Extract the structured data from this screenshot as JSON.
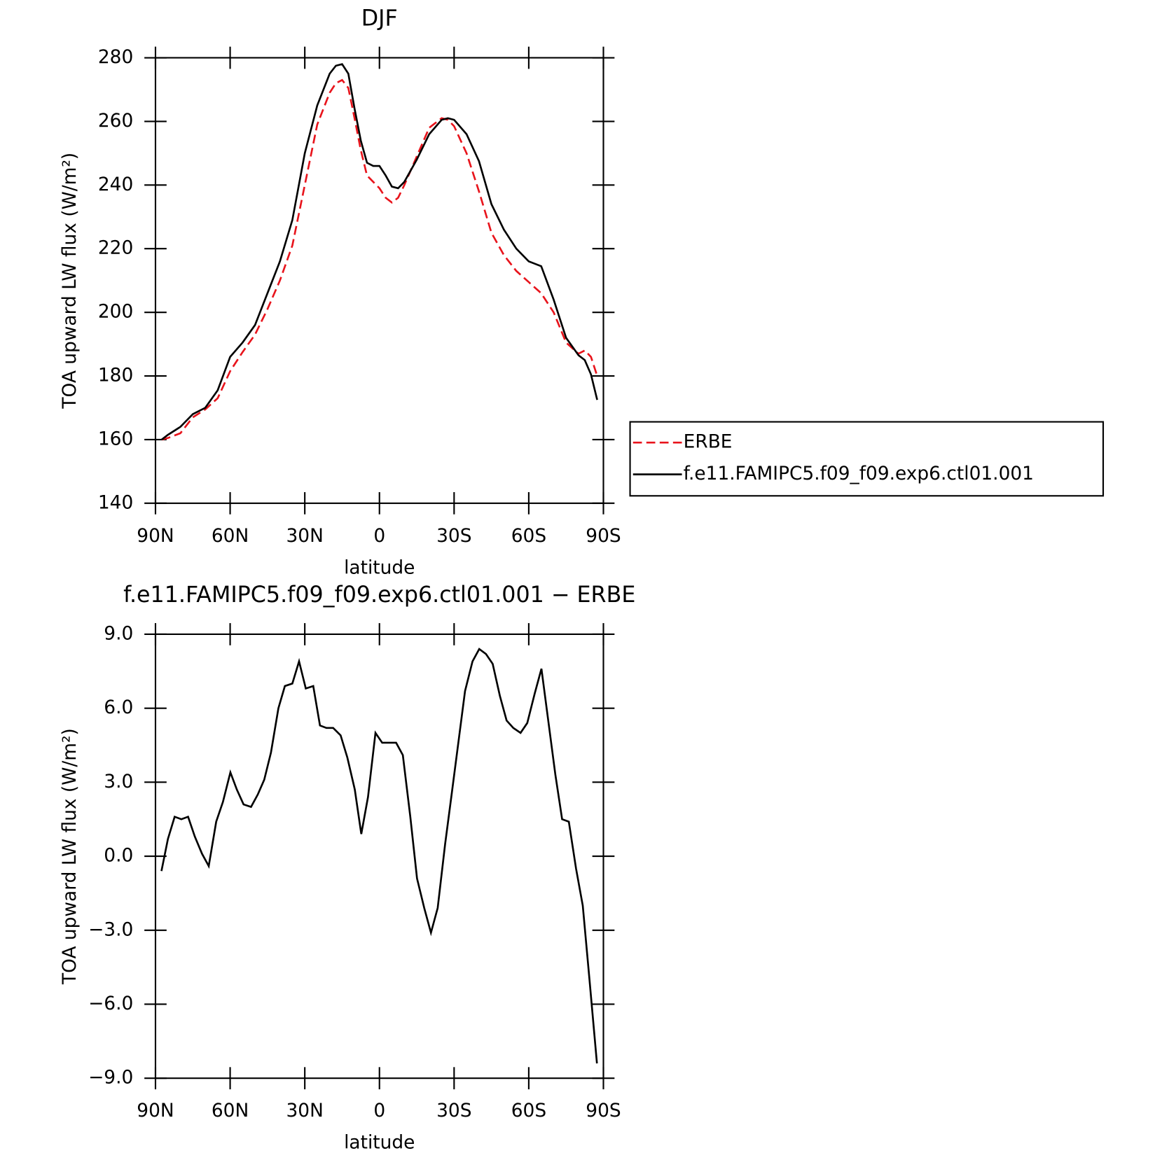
{
  "chart_data": [
    {
      "type": "line",
      "title": "DJF",
      "xlabel": "latitude",
      "ylabel": "TOA upward LW flux (W/m²)",
      "x": [
        87.5,
        85,
        80,
        75,
        70,
        65,
        60,
        55,
        50,
        45,
        40,
        35,
        30,
        25,
        20,
        17.5,
        15,
        12.5,
        10,
        7.5,
        5,
        2.5,
        0,
        -2.5,
        -5,
        -7.5,
        -10,
        -15,
        -20,
        -25,
        -27.5,
        -30,
        -35,
        -40,
        -45,
        -50,
        -55,
        -60,
        -65,
        -70,
        -75,
        -80,
        -82.5,
        -85,
        -87.5
      ],
      "series": [
        {
          "name": "ERBE",
          "color": "#e8141c",
          "dash": true,
          "values": [
            160,
            160.5,
            162,
            167,
            169.5,
            173,
            181.5,
            187.5,
            193,
            201,
            210,
            221,
            240,
            259,
            269,
            272,
            273,
            270.5,
            261,
            251,
            243,
            241,
            239,
            236,
            234.5,
            236,
            240,
            249,
            258,
            261,
            260.5,
            258.5,
            250,
            238,
            225,
            218,
            213,
            209.5,
            206,
            200,
            190.5,
            187,
            188,
            186,
            180
          ]
        },
        {
          "name": "f.e11.FAMIPC5.f09_f09.exp6.ctl01.001",
          "color": "#000000",
          "dash": false,
          "values": [
            160,
            161.5,
            164,
            168,
            170,
            175.5,
            186,
            190.5,
            196,
            206,
            216,
            229,
            250,
            265,
            275,
            277.5,
            278,
            275,
            264,
            254,
            247,
            246,
            246,
            243,
            239.5,
            239,
            241,
            248,
            256,
            260.5,
            261,
            260.5,
            256,
            247.5,
            234,
            226,
            220,
            216,
            214.5,
            204,
            192,
            186.5,
            185,
            180.5,
            172.5
          ]
        }
      ],
      "xlim": [
        90,
        -90
      ],
      "xticks": [
        {
          "value": 90,
          "label": "90N"
        },
        {
          "value": 60,
          "label": "60N"
        },
        {
          "value": 30,
          "label": "30N"
        },
        0,
        {
          "value": -30,
          "label": "30S"
        },
        {
          "value": -60,
          "label": "60S"
        },
        {
          "value": -90,
          "label": "90S"
        }
      ],
      "ylim": [
        140,
        280
      ],
      "yticks": [
        140,
        160,
        180,
        200,
        220,
        240,
        260,
        280
      ],
      "legend": "right"
    },
    {
      "type": "line",
      "title": "f.e11.FAMIPC5.f09_f09.exp6.ctl01.001 − ERBE",
      "xlabel": "latitude",
      "ylabel": "TOA upward LW flux (W/m²)",
      "x": [
        87.6,
        85,
        82.3,
        79.6,
        76.9,
        74.2,
        71.3,
        68.6,
        65.6,
        62.9,
        59.9,
        57.3,
        54.6,
        51.6,
        48.9,
        46.3,
        43.6,
        40.6,
        38,
        35,
        32.3,
        29.6,
        26.6,
        23.9,
        21.3,
        18.6,
        15.6,
        12.9,
        9.9,
        7.3,
        4.6,
        1.6,
        -1.1,
        -4,
        -6.7,
        -9.4,
        -12.4,
        -15.1,
        -18,
        -20.7,
        -23.4,
        -26.4,
        -29,
        -31.7,
        -34.4,
        -37.4,
        -40.1,
        -42.8,
        -45.5,
        -48.4,
        -51.1,
        -53.8,
        -56.7,
        -59.4,
        -62.4,
        -65.1,
        -67.7,
        -70.7,
        -73.4,
        -76.1,
        -79,
        -81.7,
        -84.4,
        -87.4
      ],
      "series": [
        {
          "color": "#000000",
          "dash": false,
          "values": [
            -0.6,
            0.7,
            1.6,
            1.5,
            1.6,
            0.8,
            0.1,
            -0.4,
            1.4,
            2.2,
            3.4,
            2.7,
            2.1,
            2.0,
            2.5,
            3.1,
            4.2,
            6.0,
            6.9,
            7.0,
            7.9,
            6.8,
            6.9,
            5.3,
            5.2,
            5.2,
            4.9,
            4.0,
            2.7,
            0.9,
            2.4,
            5.0,
            4.6,
            4.6,
            4.6,
            4.1,
            1.6,
            -0.9,
            -2.1,
            -3.1,
            -2.1,
            0.5,
            2.5,
            4.6,
            6.7,
            7.9,
            8.4,
            8.2,
            7.8,
            6.5,
            5.5,
            5.2,
            5.0,
            5.4,
            6.6,
            7.6,
            5.6,
            3.3,
            1.5,
            1.4,
            -0.5,
            -2.0,
            -5.0,
            -8.4
          ]
        }
      ],
      "xlim": [
        90,
        -90
      ],
      "xticks": [
        {
          "value": 90,
          "label": "90N"
        },
        {
          "value": 60,
          "label": "60N"
        },
        {
          "value": 30,
          "label": "30N"
        },
        0,
        {
          "value": -30,
          "label": "30S"
        },
        {
          "value": -60,
          "label": "60S"
        },
        {
          "value": -90,
          "label": "90S"
        }
      ],
      "ylim": [
        -9,
        9
      ],
      "yticks": [
        {
          "value": -9,
          "label": "−9.0"
        },
        {
          "value": -6,
          "label": "−6.0"
        },
        {
          "value": -3,
          "label": "−3.0"
        },
        {
          "value": 0,
          "label": "0.0"
        },
        {
          "value": 3,
          "label": "3.0"
        },
        {
          "value": 6,
          "label": "6.0"
        },
        {
          "value": 9,
          "label": "9.0"
        }
      ]
    }
  ]
}
